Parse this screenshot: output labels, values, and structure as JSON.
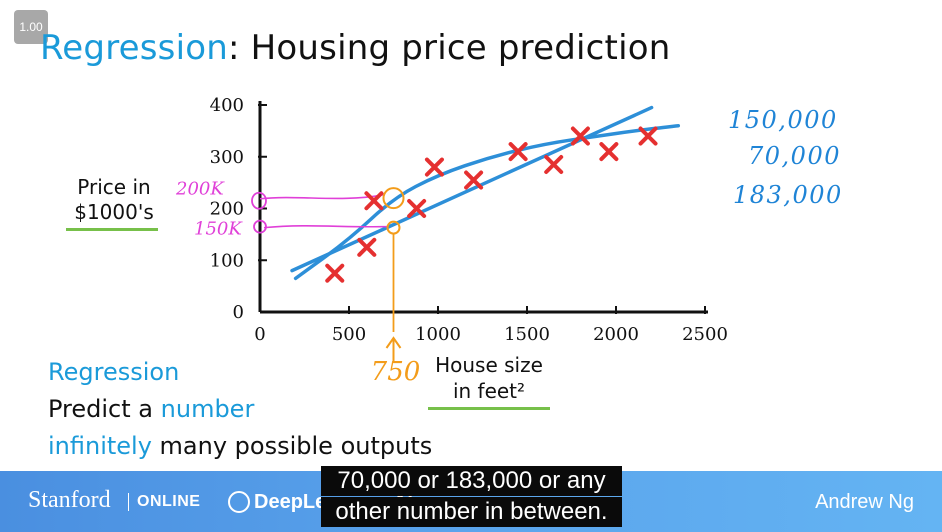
{
  "player": {
    "speed": "1.00"
  },
  "slide": {
    "title_accent": "Regression",
    "title_rest": ": Housing price prediction",
    "bullets": {
      "regression": "Regression",
      "predict_a": "Predict a ",
      "number": "number",
      "infinitely": "infinitely",
      "many_outputs": " many possible outputs"
    }
  },
  "chart_data": {
    "type": "scatter",
    "ylabel": "Price in\n$1000's",
    "xlabel": "House size\nin feet²",
    "xlim": [
      0,
      2500
    ],
    "ylim": [
      0,
      400
    ],
    "x_ticks": [
      "0",
      "500",
      "1000",
      "1500",
      "2000",
      "2500"
    ],
    "y_ticks": [
      "0",
      "100",
      "200",
      "300",
      "400"
    ],
    "points": [
      {
        "x": 420,
        "y": 75
      },
      {
        "x": 600,
        "y": 125
      },
      {
        "x": 640,
        "y": 215
      },
      {
        "x": 880,
        "y": 200
      },
      {
        "x": 980,
        "y": 280
      },
      {
        "x": 1200,
        "y": 255
      },
      {
        "x": 1450,
        "y": 310
      },
      {
        "x": 1650,
        "y": 285
      },
      {
        "x": 1800,
        "y": 340
      },
      {
        "x": 1960,
        "y": 310
      },
      {
        "x": 2180,
        "y": 340
      }
    ],
    "straight_fit": {
      "x": [
        180,
        2200
      ],
      "y": [
        80,
        395
      ]
    },
    "curve_fit": {
      "x": [
        200,
        500,
        750,
        1000,
        1300,
        1600,
        1900,
        2100,
        2350
      ],
      "y": [
        65,
        140,
        220,
        265,
        300,
        325,
        340,
        350,
        360
      ]
    },
    "query_x": 750,
    "query_label": "750",
    "annotation_200k": "200K",
    "annotation_150k": "150K",
    "handwritten_values": [
      "150,000",
      "70,000",
      "183,000"
    ],
    "colors": {
      "axis": "#111111",
      "points": "#e53030",
      "fit": "#2d8fd8",
      "pink": "#e040d8",
      "orange": "#f39c1a",
      "hand_blue": "#1f84d6"
    }
  },
  "captions": [
    "70,000 or 183,000 or any",
    "other number in between."
  ],
  "footer": {
    "stanford": "Stanford",
    "online": "ONLINE",
    "deeplearning": "DeepLearning.AI",
    "author": "Andrew Ng"
  }
}
